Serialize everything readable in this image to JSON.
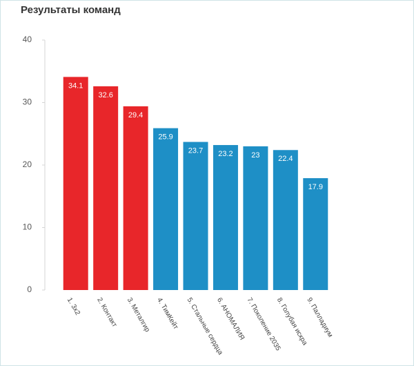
{
  "chart_data": {
    "type": "bar",
    "title": "Результаты команд",
    "categories": [
      "1. 3х2",
      "2. Контакт",
      "3. Металгир",
      "4. ТимКейт",
      "5. Стальные сердца",
      "6. АНОМАЛИЯ",
      "7. Поколение 2035",
      "8. Голубая искра",
      "9. Палладиум"
    ],
    "values": [
      34.1,
      32.6,
      29.4,
      25.9,
      23.7,
      23.2,
      23,
      22.4,
      17.9
    ],
    "colors": [
      "#e8262a",
      "#e8262a",
      "#e8262a",
      "#1e8fc6",
      "#1e8fc6",
      "#1e8fc6",
      "#1e8fc6",
      "#1e8fc6",
      "#1e8fc6"
    ],
    "ylim": [
      0,
      40
    ],
    "yticks": [
      0,
      10,
      20,
      30,
      40
    ],
    "grid": false
  }
}
